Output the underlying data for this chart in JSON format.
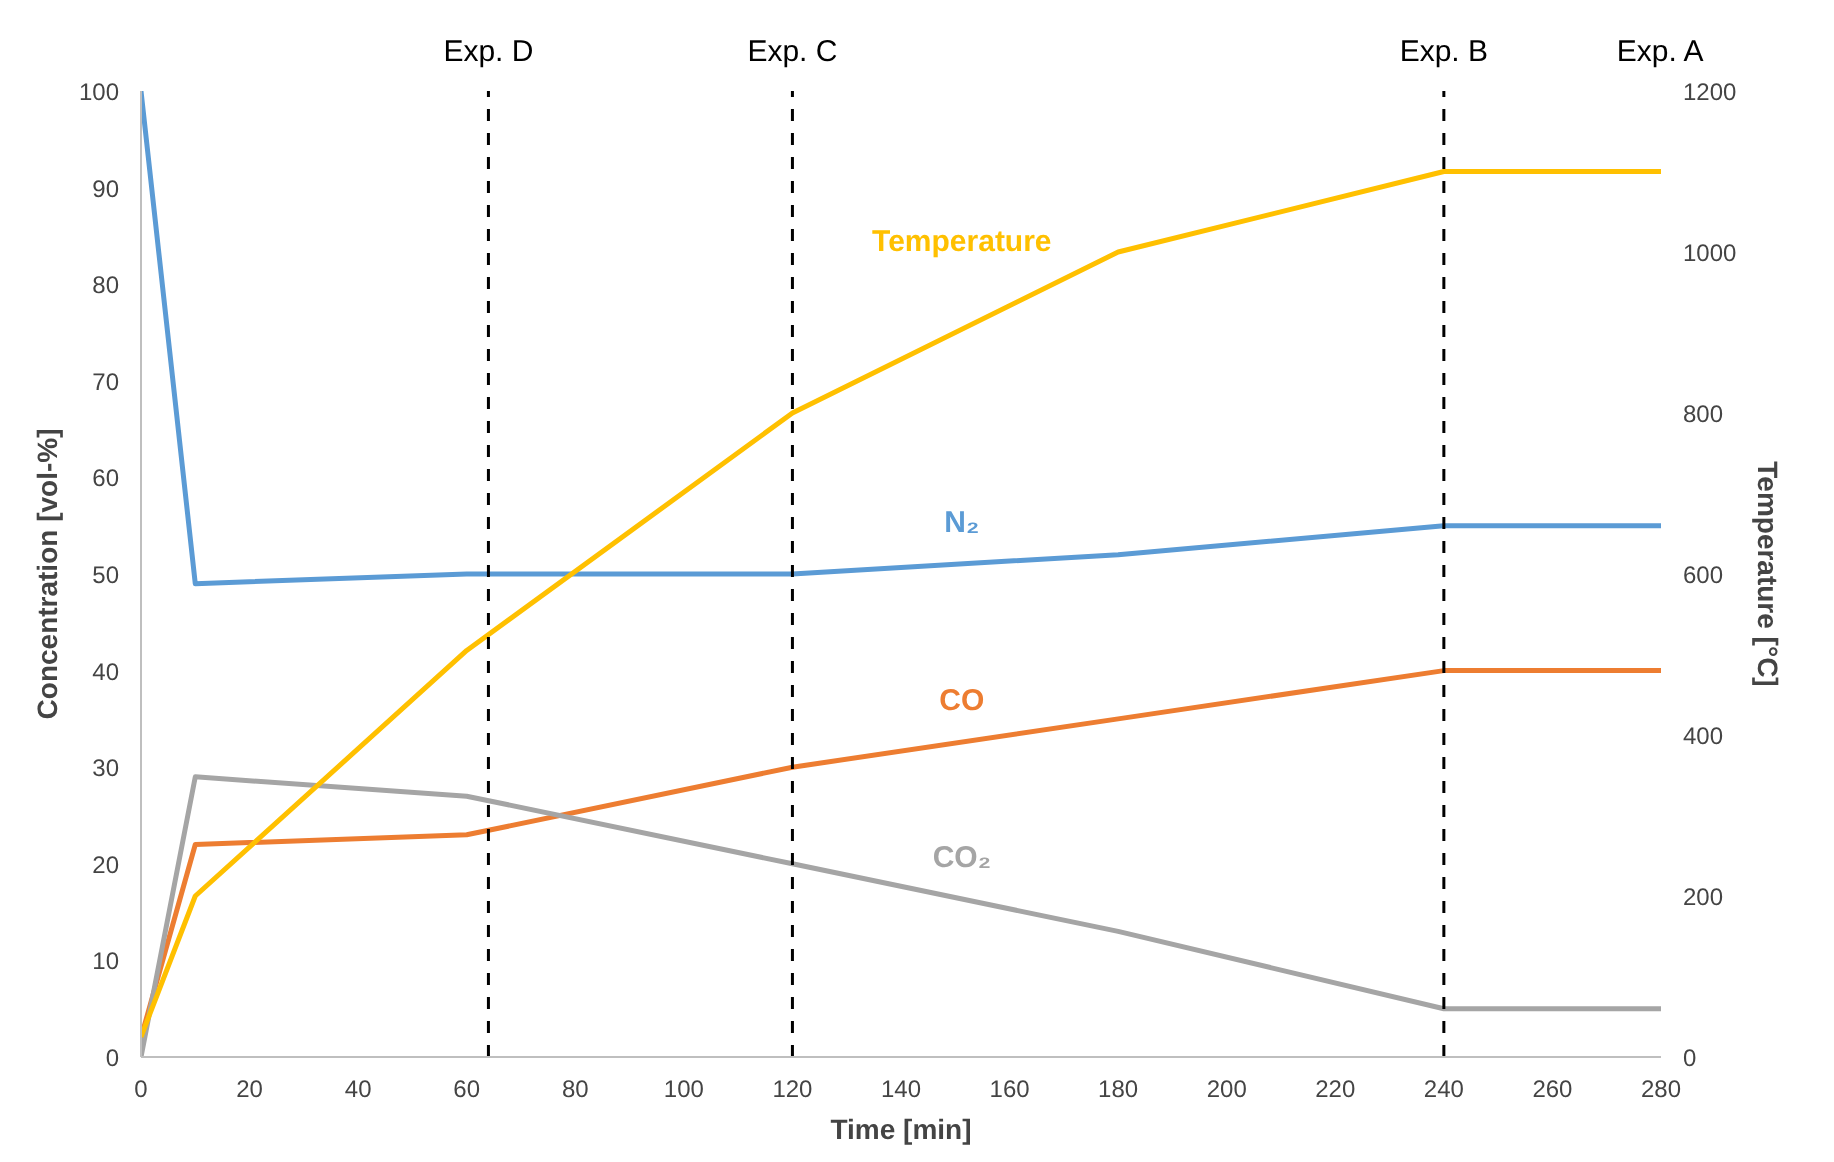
{
  "chart_data": {
    "type": "line",
    "xlabel": "Time [min]",
    "ylabel": "Concentration [vol-%]",
    "y2label": "Temperature [°C]",
    "x": [
      0,
      10,
      60,
      120,
      180,
      240,
      280
    ],
    "series": [
      {
        "name": "N₂",
        "color": "#5b9bd5",
        "values": [
          100,
          49,
          50,
          50,
          52,
          55,
          55
        ]
      },
      {
        "name": "CO",
        "color": "#ed7d31",
        "values": [
          2,
          22,
          23,
          30,
          35,
          40,
          40
        ]
      },
      {
        "name": "CO₂",
        "color": "#a5a5a5",
        "values": [
          0,
          29,
          27,
          20,
          13,
          5,
          5
        ]
      },
      {
        "name": "Temperature",
        "color": "#ffc000",
        "axis": "y2",
        "values": [
          25,
          200,
          505,
          800,
          1000,
          1100,
          1100
        ]
      }
    ],
    "xlim": [
      0,
      280
    ],
    "xticks": [
      0,
      20,
      40,
      60,
      80,
      100,
      120,
      140,
      160,
      180,
      200,
      220,
      240,
      260,
      280
    ],
    "ylim": [
      0,
      100
    ],
    "yticks": [
      0,
      10,
      20,
      30,
      40,
      50,
      60,
      70,
      80,
      90,
      100
    ],
    "y2lim": [
      0,
      1200
    ],
    "y2ticks": [
      0,
      200,
      400,
      600,
      800,
      1000,
      1200
    ],
    "ref_lines": [
      {
        "axis": "x",
        "value": 64,
        "label": "Exp. D",
        "color": "#000000",
        "line_style": "dashed"
      },
      {
        "axis": "x",
        "value": 120,
        "label": "Exp. C",
        "color": "#000000",
        "line_style": "dashed"
      },
      {
        "axis": "x",
        "value": 240,
        "label": "Exp. B",
        "color": "#000000",
        "line_style": "dashed"
      }
    ],
    "annotations": [
      "Exp. A"
    ],
    "grid": false,
    "marker": "none",
    "line_style": "solid"
  }
}
